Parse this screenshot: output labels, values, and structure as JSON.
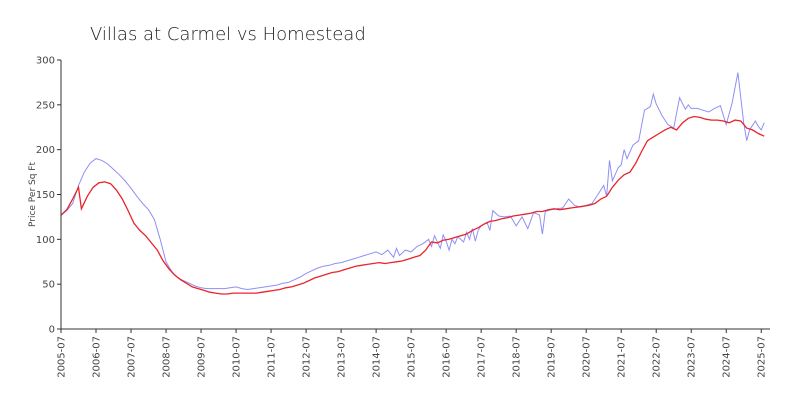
{
  "chart_data": {
    "type": "line",
    "title": "Villas at Carmel vs Homestead",
    "xlabel": "",
    "ylabel": "Price Per Sq Ft",
    "ylim": [
      0,
      300
    ],
    "yticks": [
      0,
      50,
      100,
      150,
      200,
      250,
      300
    ],
    "xlim": [
      "2005-07",
      "2025-10"
    ],
    "xtick_labels": [
      "2005-07",
      "2006-07",
      "2007-07",
      "2008-07",
      "2009-07",
      "2010-07",
      "2011-07",
      "2012-07",
      "2013-07",
      "2014-07",
      "2015-07",
      "2016-07",
      "2017-07",
      "2018-07",
      "2019-07",
      "2020-07",
      "2021-07",
      "2022-07",
      "2023-07",
      "2024-07",
      "2025-07"
    ],
    "grid": false,
    "legend": "none",
    "series": [
      {
        "color": "#8f8ff5",
        "points": [
          [
            "2005-07",
            127
          ],
          [
            "2005-09",
            132
          ],
          [
            "2005-11",
            140
          ],
          [
            "2006-01",
            160
          ],
          [
            "2006-03",
            175
          ],
          [
            "2006-05",
            185
          ],
          [
            "2006-07",
            190
          ],
          [
            "2006-09",
            188
          ],
          [
            "2006-11",
            184
          ],
          [
            "2007-01",
            178
          ],
          [
            "2007-03",
            172
          ],
          [
            "2007-05",
            165
          ],
          [
            "2007-07",
            157
          ],
          [
            "2007-09",
            148
          ],
          [
            "2007-11",
            140
          ],
          [
            "2008-01",
            133
          ],
          [
            "2008-03",
            122
          ],
          [
            "2008-05",
            100
          ],
          [
            "2008-07",
            75
          ],
          [
            "2008-09",
            64
          ],
          [
            "2008-11",
            57
          ],
          [
            "2009-01",
            54
          ],
          [
            "2009-03",
            51
          ],
          [
            "2009-05",
            48
          ],
          [
            "2009-07",
            46
          ],
          [
            "2009-09",
            45
          ],
          [
            "2009-11",
            45
          ],
          [
            "2010-01",
            45
          ],
          [
            "2010-03",
            45
          ],
          [
            "2010-05",
            46
          ],
          [
            "2010-07",
            47
          ],
          [
            "2010-09",
            45
          ],
          [
            "2010-11",
            44
          ],
          [
            "2011-01",
            45
          ],
          [
            "2011-03",
            46
          ],
          [
            "2011-05",
            47
          ],
          [
            "2011-07",
            48
          ],
          [
            "2011-09",
            49
          ],
          [
            "2011-11",
            51
          ],
          [
            "2012-01",
            52
          ],
          [
            "2012-03",
            55
          ],
          [
            "2012-05",
            58
          ],
          [
            "2012-07",
            62
          ],
          [
            "2012-09",
            65
          ],
          [
            "2012-11",
            68
          ],
          [
            "2013-01",
            70
          ],
          [
            "2013-03",
            71
          ],
          [
            "2013-05",
            73
          ],
          [
            "2013-07",
            74
          ],
          [
            "2013-09",
            76
          ],
          [
            "2013-11",
            78
          ],
          [
            "2014-01",
            80
          ],
          [
            "2014-03",
            82
          ],
          [
            "2014-05",
            84
          ],
          [
            "2014-07",
            86
          ],
          [
            "2014-09",
            83
          ],
          [
            "2014-11",
            88
          ],
          [
            "2015-01",
            80
          ],
          [
            "2015-02",
            90
          ],
          [
            "2015-03",
            82
          ],
          [
            "2015-05",
            88
          ],
          [
            "2015-07",
            86
          ],
          [
            "2015-09",
            92
          ],
          [
            "2015-11",
            95
          ],
          [
            "2016-01",
            100
          ],
          [
            "2016-02",
            92
          ],
          [
            "2016-03",
            104
          ],
          [
            "2016-05",
            90
          ],
          [
            "2016-06",
            105
          ],
          [
            "2016-07",
            98
          ],
          [
            "2016-08",
            88
          ],
          [
            "2016-09",
            100
          ],
          [
            "2016-10",
            95
          ],
          [
            "2016-11",
            103
          ],
          [
            "2017-01",
            97
          ],
          [
            "2017-02",
            108
          ],
          [
            "2017-03",
            100
          ],
          [
            "2017-04",
            112
          ],
          [
            "2017-05",
            98
          ],
          [
            "2017-06",
            110
          ],
          [
            "2017-07",
            115
          ],
          [
            "2017-09",
            119
          ],
          [
            "2017-10",
            110
          ],
          [
            "2017-11",
            132
          ],
          [
            "2018-01",
            126
          ],
          [
            "2018-03",
            125
          ],
          [
            "2018-05",
            126
          ],
          [
            "2018-07",
            115
          ],
          [
            "2018-09",
            125
          ],
          [
            "2018-11",
            112
          ],
          [
            "2019-01",
            130
          ],
          [
            "2019-03",
            127
          ],
          [
            "2019-04",
            106
          ],
          [
            "2019-05",
            131
          ],
          [
            "2019-07",
            133
          ],
          [
            "2019-09",
            134
          ],
          [
            "2019-11",
            135
          ],
          [
            "2020-01",
            145
          ],
          [
            "2020-03",
            138
          ],
          [
            "2020-05",
            136
          ],
          [
            "2020-07",
            138
          ],
          [
            "2020-09",
            140
          ],
          [
            "2020-11",
            150
          ],
          [
            "2021-01",
            160
          ],
          [
            "2021-02",
            148
          ],
          [
            "2021-03",
            188
          ],
          [
            "2021-04",
            165
          ],
          [
            "2021-06",
            180
          ],
          [
            "2021-07",
            183
          ],
          [
            "2021-08",
            200
          ],
          [
            "2021-09",
            190
          ],
          [
            "2021-11",
            205
          ],
          [
            "2022-01",
            210
          ],
          [
            "2022-03",
            244
          ],
          [
            "2022-05",
            248
          ],
          [
            "2022-06",
            262
          ],
          [
            "2022-07",
            251
          ],
          [
            "2022-09",
            238
          ],
          [
            "2022-11",
            228
          ],
          [
            "2023-01",
            224
          ],
          [
            "2023-03",
            258
          ],
          [
            "2023-05",
            245
          ],
          [
            "2023-06",
            250
          ],
          [
            "2023-07",
            246
          ],
          [
            "2023-09",
            246
          ],
          [
            "2023-11",
            244
          ],
          [
            "2024-01",
            242
          ],
          [
            "2024-03",
            246
          ],
          [
            "2024-05",
            249
          ],
          [
            "2024-07",
            228
          ],
          [
            "2024-09",
            252
          ],
          [
            "2024-11",
            286
          ],
          [
            "2025-01",
            230
          ],
          [
            "2025-02",
            210
          ],
          [
            "2025-03",
            222
          ],
          [
            "2025-05",
            232
          ],
          [
            "2025-06",
            226
          ],
          [
            "2025-07",
            222
          ],
          [
            "2025-08",
            230
          ]
        ]
      },
      {
        "color": "#e8242c",
        "points": [
          [
            "2005-07",
            127
          ],
          [
            "2005-09",
            133
          ],
          [
            "2005-11",
            145
          ],
          [
            "2006-01",
            158
          ],
          [
            "2006-02",
            134
          ],
          [
            "2006-04",
            148
          ],
          [
            "2006-06",
            158
          ],
          [
            "2006-08",
            163
          ],
          [
            "2006-10",
            164
          ],
          [
            "2006-12",
            162
          ],
          [
            "2007-02",
            155
          ],
          [
            "2007-04",
            145
          ],
          [
            "2007-06",
            132
          ],
          [
            "2007-08",
            118
          ],
          [
            "2007-10",
            110
          ],
          [
            "2007-12",
            104
          ],
          [
            "2008-02",
            96
          ],
          [
            "2008-04",
            88
          ],
          [
            "2008-06",
            76
          ],
          [
            "2008-08",
            67
          ],
          [
            "2008-10",
            60
          ],
          [
            "2008-12",
            55
          ],
          [
            "2009-02",
            51
          ],
          [
            "2009-04",
            47
          ],
          [
            "2009-06",
            45
          ],
          [
            "2009-08",
            43
          ],
          [
            "2009-10",
            41
          ],
          [
            "2009-12",
            40
          ],
          [
            "2010-02",
            39
          ],
          [
            "2010-04",
            39
          ],
          [
            "2010-06",
            40
          ],
          [
            "2010-08",
            40
          ],
          [
            "2010-10",
            40
          ],
          [
            "2010-12",
            40
          ],
          [
            "2011-02",
            40
          ],
          [
            "2011-04",
            41
          ],
          [
            "2011-06",
            42
          ],
          [
            "2011-08",
            43
          ],
          [
            "2011-10",
            44
          ],
          [
            "2011-12",
            46
          ],
          [
            "2012-02",
            47
          ],
          [
            "2012-04",
            49
          ],
          [
            "2012-06",
            51
          ],
          [
            "2012-08",
            54
          ],
          [
            "2012-10",
            57
          ],
          [
            "2012-12",
            59
          ],
          [
            "2013-02",
            61
          ],
          [
            "2013-04",
            63
          ],
          [
            "2013-06",
            64
          ],
          [
            "2013-08",
            66
          ],
          [
            "2013-10",
            68
          ],
          [
            "2013-12",
            70
          ],
          [
            "2014-02",
            71
          ],
          [
            "2014-04",
            72
          ],
          [
            "2014-06",
            73
          ],
          [
            "2014-08",
            74
          ],
          [
            "2014-10",
            73
          ],
          [
            "2014-12",
            74
          ],
          [
            "2015-02",
            75
          ],
          [
            "2015-04",
            76
          ],
          [
            "2015-06",
            78
          ],
          [
            "2015-08",
            80
          ],
          [
            "2015-10",
            82
          ],
          [
            "2015-12",
            88
          ],
          [
            "2016-02",
            97
          ],
          [
            "2016-04",
            96
          ],
          [
            "2016-06",
            99
          ],
          [
            "2016-08",
            100
          ],
          [
            "2016-10",
            102
          ],
          [
            "2016-12",
            104
          ],
          [
            "2017-02",
            106
          ],
          [
            "2017-04",
            110
          ],
          [
            "2017-06",
            113
          ],
          [
            "2017-08",
            117
          ],
          [
            "2017-10",
            120
          ],
          [
            "2017-12",
            121
          ],
          [
            "2018-02",
            123
          ],
          [
            "2018-04",
            124
          ],
          [
            "2018-06",
            126
          ],
          [
            "2018-08",
            127
          ],
          [
            "2018-10",
            128
          ],
          [
            "2018-12",
            129
          ],
          [
            "2019-02",
            131
          ],
          [
            "2019-04",
            131
          ],
          [
            "2019-06",
            133
          ],
          [
            "2019-08",
            134
          ],
          [
            "2019-10",
            133
          ],
          [
            "2019-12",
            134
          ],
          [
            "2020-02",
            135
          ],
          [
            "2020-04",
            136
          ],
          [
            "2020-06",
            137
          ],
          [
            "2020-08",
            138
          ],
          [
            "2020-10",
            140
          ],
          [
            "2020-12",
            145
          ],
          [
            "2021-02",
            148
          ],
          [
            "2021-04",
            158
          ],
          [
            "2021-06",
            166
          ],
          [
            "2021-08",
            172
          ],
          [
            "2021-10",
            175
          ],
          [
            "2021-12",
            185
          ],
          [
            "2022-02",
            198
          ],
          [
            "2022-04",
            210
          ],
          [
            "2022-06",
            214
          ],
          [
            "2022-08",
            218
          ],
          [
            "2022-10",
            222
          ],
          [
            "2022-12",
            225
          ],
          [
            "2023-02",
            222
          ],
          [
            "2023-04",
            230
          ],
          [
            "2023-06",
            235
          ],
          [
            "2023-08",
            237
          ],
          [
            "2023-10",
            236
          ],
          [
            "2023-12",
            234
          ],
          [
            "2024-02",
            233
          ],
          [
            "2024-04",
            233
          ],
          [
            "2024-06",
            232
          ],
          [
            "2024-08",
            230
          ],
          [
            "2024-10",
            233
          ],
          [
            "2024-12",
            232
          ],
          [
            "2025-02",
            224
          ],
          [
            "2025-04",
            222
          ],
          [
            "2025-06",
            218
          ],
          [
            "2025-08",
            215
          ]
        ]
      }
    ]
  }
}
